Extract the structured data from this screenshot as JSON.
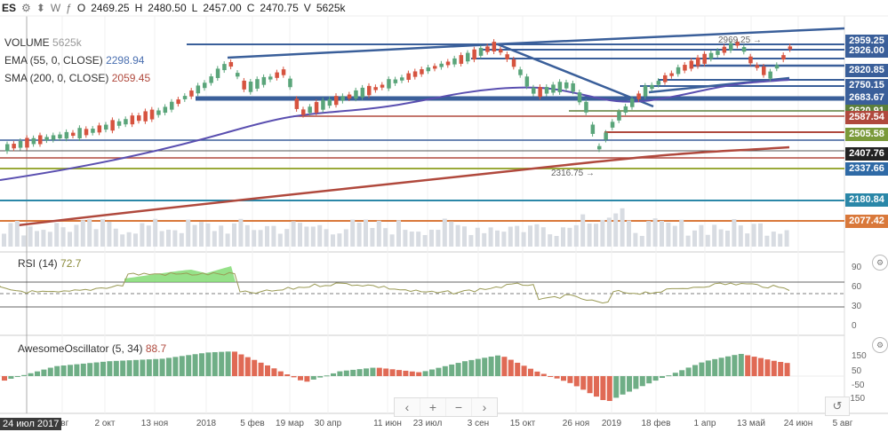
{
  "topbar": {
    "symbol": "ES",
    "o_label": "O",
    "o": "2469.25",
    "h_label": "H",
    "h": "2480.50",
    "l_label": "L",
    "l": "2457.00",
    "c_label": "C",
    "c": "2470.75",
    "v_label": "V",
    "v": "5625k"
  },
  "indicators": {
    "volume": {
      "label": "VOLUME",
      "value": "5625k"
    },
    "ema": {
      "label": "EMA (55, 0, CLOSE)",
      "value": "2298.94"
    },
    "sma": {
      "label": "SMA (200, 0, CLOSE)",
      "value": "2059.45"
    },
    "rsi": {
      "label": "RSI (14)",
      "value": "72.7"
    },
    "ao": {
      "label": "AwesomeOscillator (5, 34)",
      "value": "88.7"
    }
  },
  "price_labels": [
    {
      "text": "2959.25",
      "color": "#3a5f9a"
    },
    {
      "text": "2926.00",
      "color": "#3a5f9a"
    },
    {
      "text": "2820.85",
      "color": "#3a5f9a"
    },
    {
      "text": "2750.15",
      "color": "#3a5f9a"
    },
    {
      "text": "2683.67",
      "color": "#3a5f9a"
    },
    {
      "text": "2620.91",
      "color": "#5c7f3a"
    },
    {
      "text": "2587.54",
      "color": "#b0493d"
    },
    {
      "text": "2505.58",
      "color": "#7a9a3a"
    },
    {
      "text": "2407.76",
      "color": "#222222"
    },
    {
      "text": "2337.66",
      "color": "#2f6aa6"
    },
    {
      "text": "2180.84",
      "color": "#2a87a8"
    },
    {
      "text": "2077.42",
      "color": "#d9783a"
    }
  ],
  "annotations": {
    "high": "2969.25 →",
    "low": "2316.75 →"
  },
  "rsi_ticks": [
    "90",
    "60",
    "30",
    "0"
  ],
  "ao_ticks": [
    "150",
    "50",
    "-50",
    "-150"
  ],
  "date_labels": [
    "авг",
    "2 окт",
    "13 ноя",
    "2018",
    "5 фев",
    "19 мар",
    "30 апр",
    "11 июн",
    "23 июл",
    "3 сен",
    "15 окт",
    "26 ноя",
    "2019",
    "18 фев",
    "1 апр",
    "13 май",
    "24 июн",
    "5 авг"
  ],
  "current_date": "24 июл 2017",
  "nav": {
    "prev": "‹",
    "plus": "+",
    "minus": "−",
    "next": "›",
    "reset": "↺"
  },
  "colors": {
    "up": "#5aa57a",
    "down": "#d6533f",
    "ema": "#5a4fb0",
    "sma": "#b0493d",
    "rsi": "#9a9a55",
    "ao_up": "#6fae86",
    "ao_down": "#e06a55"
  }
}
